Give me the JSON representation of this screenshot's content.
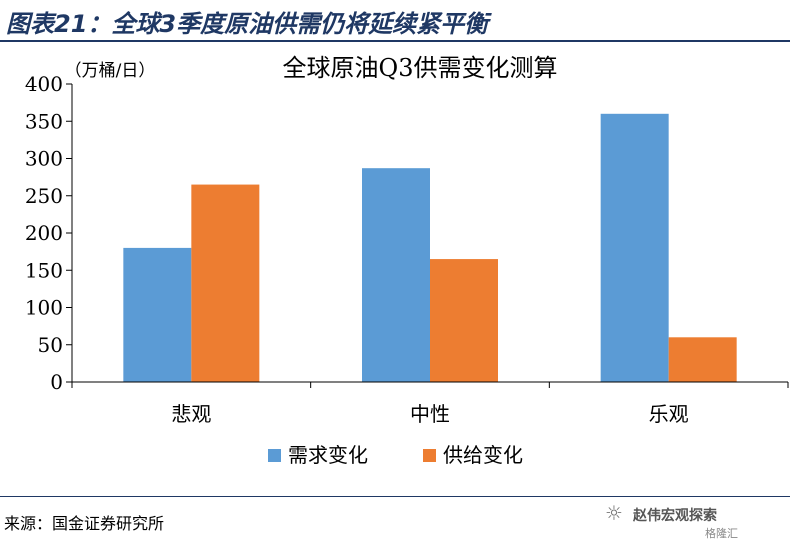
{
  "figure": {
    "title": "图表21：全球3季度原油供需仍将延续紧平衡",
    "source": "来源：国金证券研究所"
  },
  "watermark": {
    "icon": "wechat-icon",
    "text": "赵伟宏观探索",
    "sub": "格隆汇"
  },
  "chart_data": {
    "type": "bar",
    "title": "全球原油Q3供需变化测算",
    "ylabel": "（万桶/日）",
    "xlabel": "",
    "categories": [
      "悲观",
      "中性",
      "乐观"
    ],
    "series": [
      {
        "name": "需求变化",
        "color": "#5b9bd5",
        "values": [
          180,
          287,
          360
        ]
      },
      {
        "name": "供给变化",
        "color": "#ed7d31",
        "values": [
          265,
          165,
          60
        ]
      }
    ],
    "ylim": [
      0,
      400
    ],
    "yticks": [
      0,
      50,
      100,
      150,
      200,
      250,
      300,
      350,
      400
    ],
    "grid": false,
    "legend_position": "bottom"
  }
}
